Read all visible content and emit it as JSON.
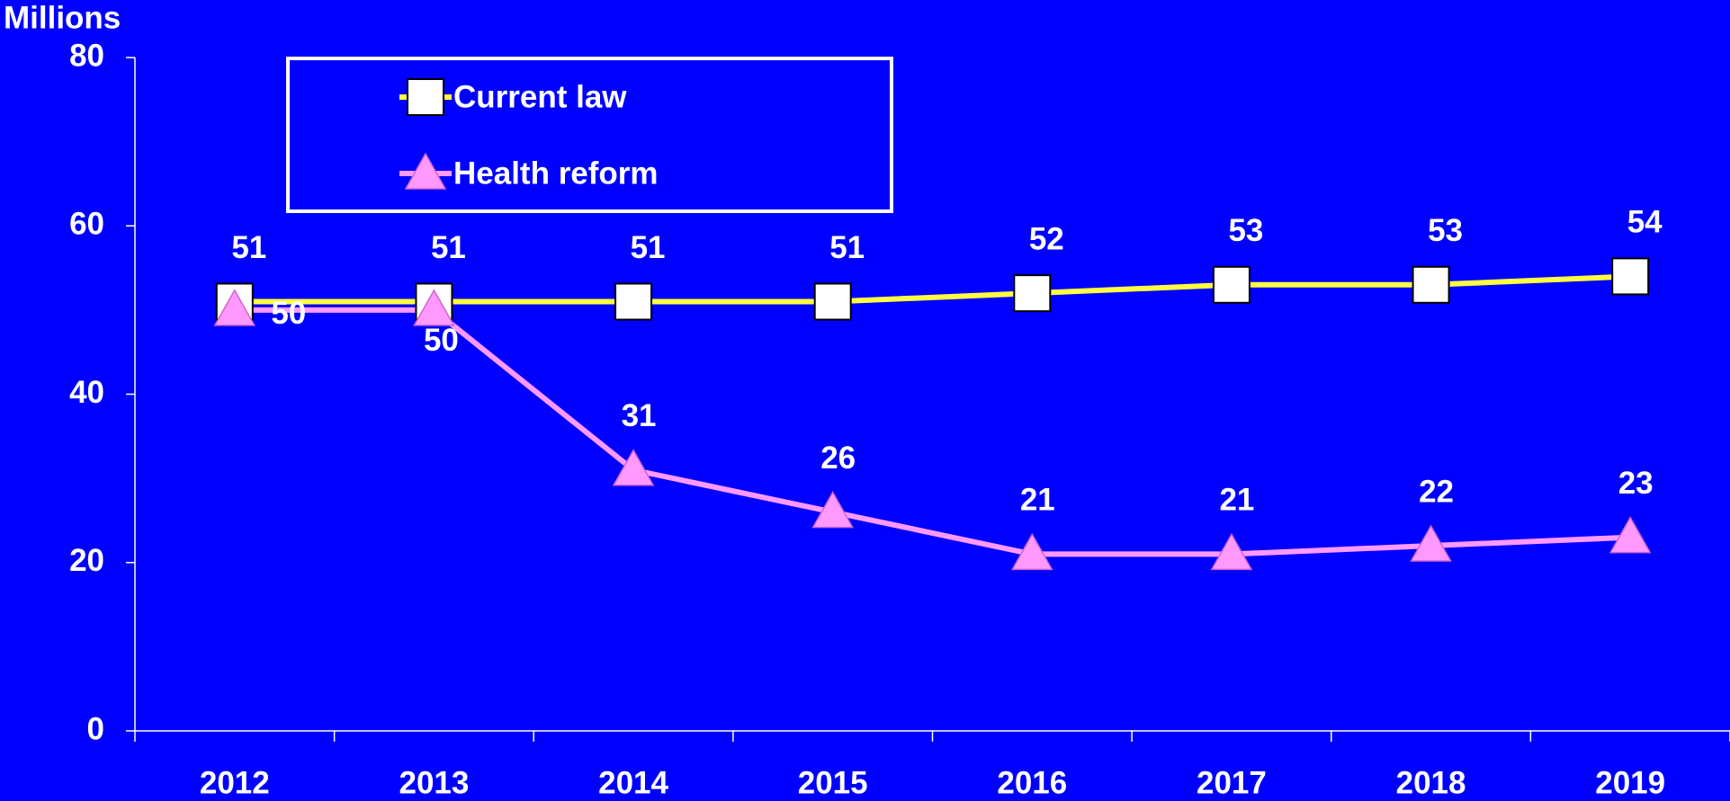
{
  "chart_data": {
    "type": "line",
    "y_axis_label": "Millions",
    "categories": [
      "2012",
      "2013",
      "2014",
      "2015",
      "2016",
      "2017",
      "2018",
      "2019"
    ],
    "series": [
      {
        "name": "Current law",
        "color": "#ffff40",
        "marker": "square",
        "values": [
          51,
          51,
          51,
          51,
          52,
          53,
          53,
          54
        ]
      },
      {
        "name": "Health reform",
        "color": "#ff99ff",
        "marker": "triangle",
        "values": [
          50,
          50,
          31,
          26,
          21,
          21,
          22,
          23
        ]
      }
    ],
    "ylim": [
      0,
      80
    ],
    "yticks": [
      0,
      20,
      40,
      60,
      80
    ],
    "grid": false,
    "legend": "top-left"
  }
}
